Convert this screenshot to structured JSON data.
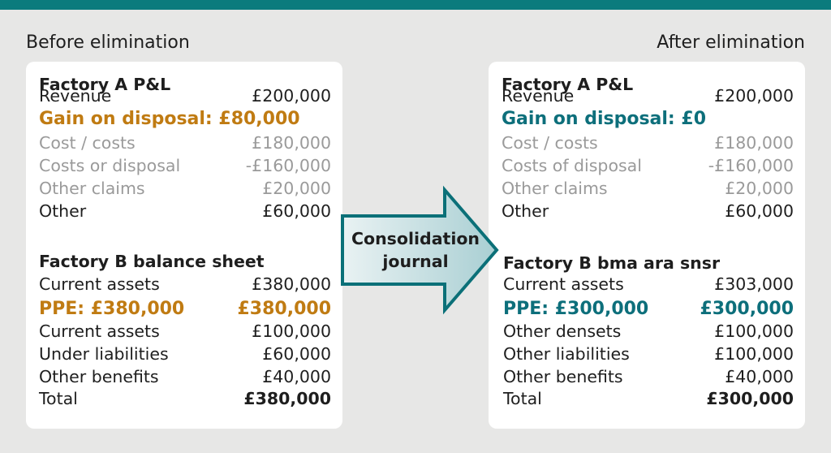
{
  "left": {
    "heading": "Before elimination",
    "pl": {
      "title": "Factory A P&L",
      "rows": [
        [
          "Revenue",
          "£200,000"
        ],
        [
          "Gain on disposal: £80,000"
        ],
        [
          "Cost / costs",
          "£180,000"
        ],
        [
          "Costs or disposal",
          "-£160,000"
        ],
        [
          "Other claims",
          "£20,000"
        ],
        [
          "Other",
          "£60,000"
        ]
      ]
    },
    "bs": {
      "title": "Factory B balance sheet",
      "rows": [
        [
          "Current assets",
          "£380,000"
        ],
        [
          "PPE: £380,000",
          "£380,000"
        ],
        [
          "Current assets",
          "£100,000"
        ],
        [
          "Under liabilities",
          "£60,000"
        ],
        [
          "Other benefits",
          "£40,000"
        ],
        [
          "Total",
          "£380,000"
        ]
      ]
    }
  },
  "right": {
    "heading": "After elimination",
    "pl": {
      "title": "Factory A P&L",
      "rows": [
        [
          "Revenue",
          "£200,000"
        ],
        [
          "Gain on disposal: £0"
        ],
        [
          "Cost / costs",
          "£180,000"
        ],
        [
          "Costs of disposal",
          "-£160,000"
        ],
        [
          "Other claims",
          "£20,000"
        ],
        [
          "Other",
          "£60,000"
        ]
      ]
    },
    "bs": {
      "title": "Factory B bma ara snsr",
      "rows": [
        [
          "Current assets",
          "£303,000"
        ],
        [
          "PPE: £300,000",
          "£300,000"
        ],
        [
          "Other densets",
          "£100,000"
        ],
        [
          "Other liabilities",
          "£100,000"
        ],
        [
          "Other benefits",
          "£40,000"
        ],
        [
          "Total",
          "£300,000"
        ]
      ]
    }
  },
  "arrow": [
    "Consolidation",
    "journal"
  ]
}
